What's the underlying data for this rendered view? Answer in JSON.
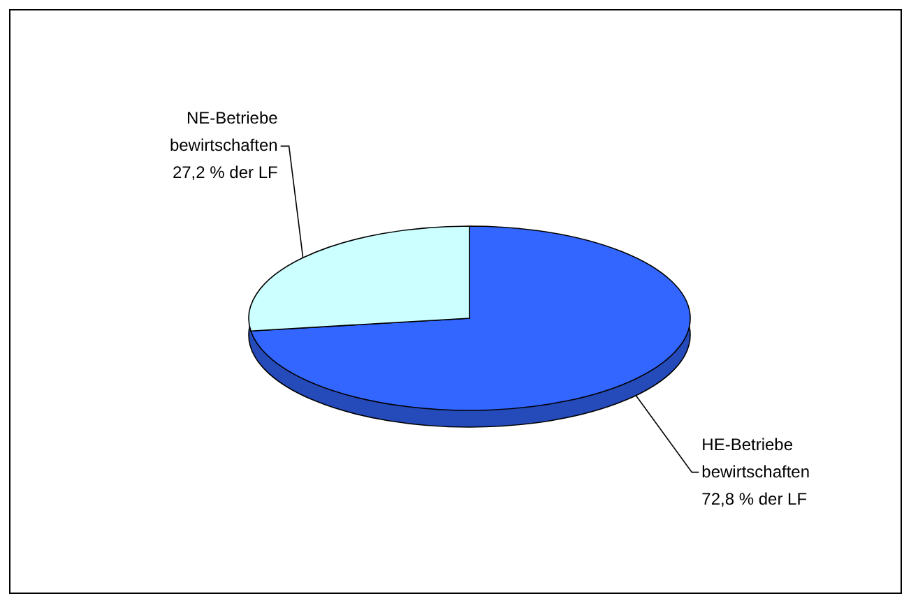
{
  "chart_data": {
    "type": "pie",
    "categories": [
      "HE-Betriebe bewirtschaften",
      "NE-Betriebe bewirtschaften"
    ],
    "values": [
      72.8,
      27.2
    ],
    "colors": [
      "#3366ff",
      "#ccffff"
    ],
    "value_labels": [
      "72,8 % der LF",
      "27,2 % der LF"
    ]
  }
}
